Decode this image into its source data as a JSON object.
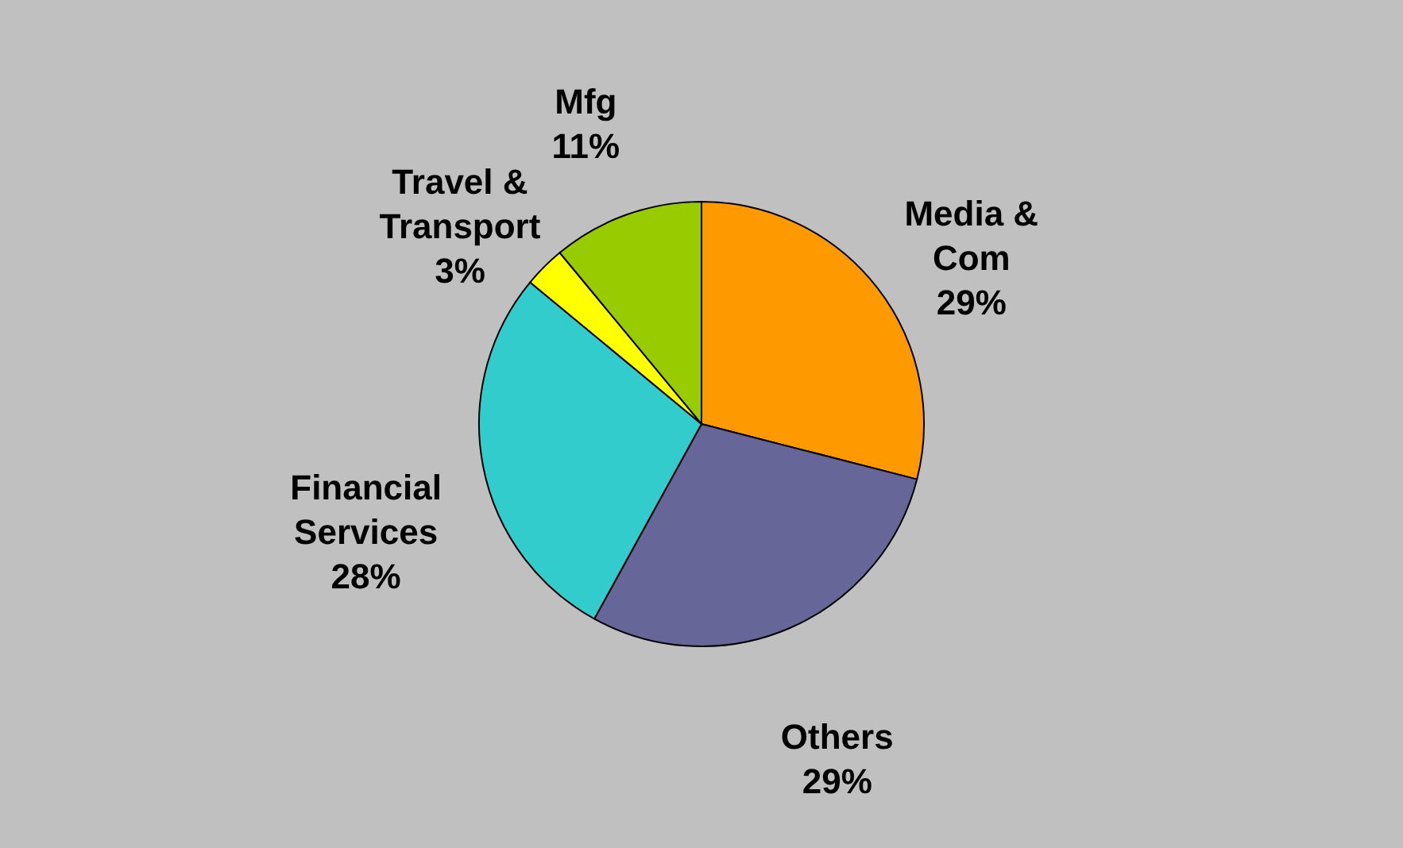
{
  "chart_data": {
    "type": "pie",
    "categories": [
      "Media & Com",
      "Others",
      "Financial Services",
      "Travel & Transport",
      "Mfg"
    ],
    "values": [
      29,
      29,
      28,
      3,
      11
    ],
    "colors": [
      "#ff9900",
      "#666699",
      "#33cccc",
      "#ffff00",
      "#99cc00"
    ],
    "value_labels": [
      "29%",
      "29%",
      "28%",
      "3%",
      "11%"
    ],
    "legend": false
  }
}
